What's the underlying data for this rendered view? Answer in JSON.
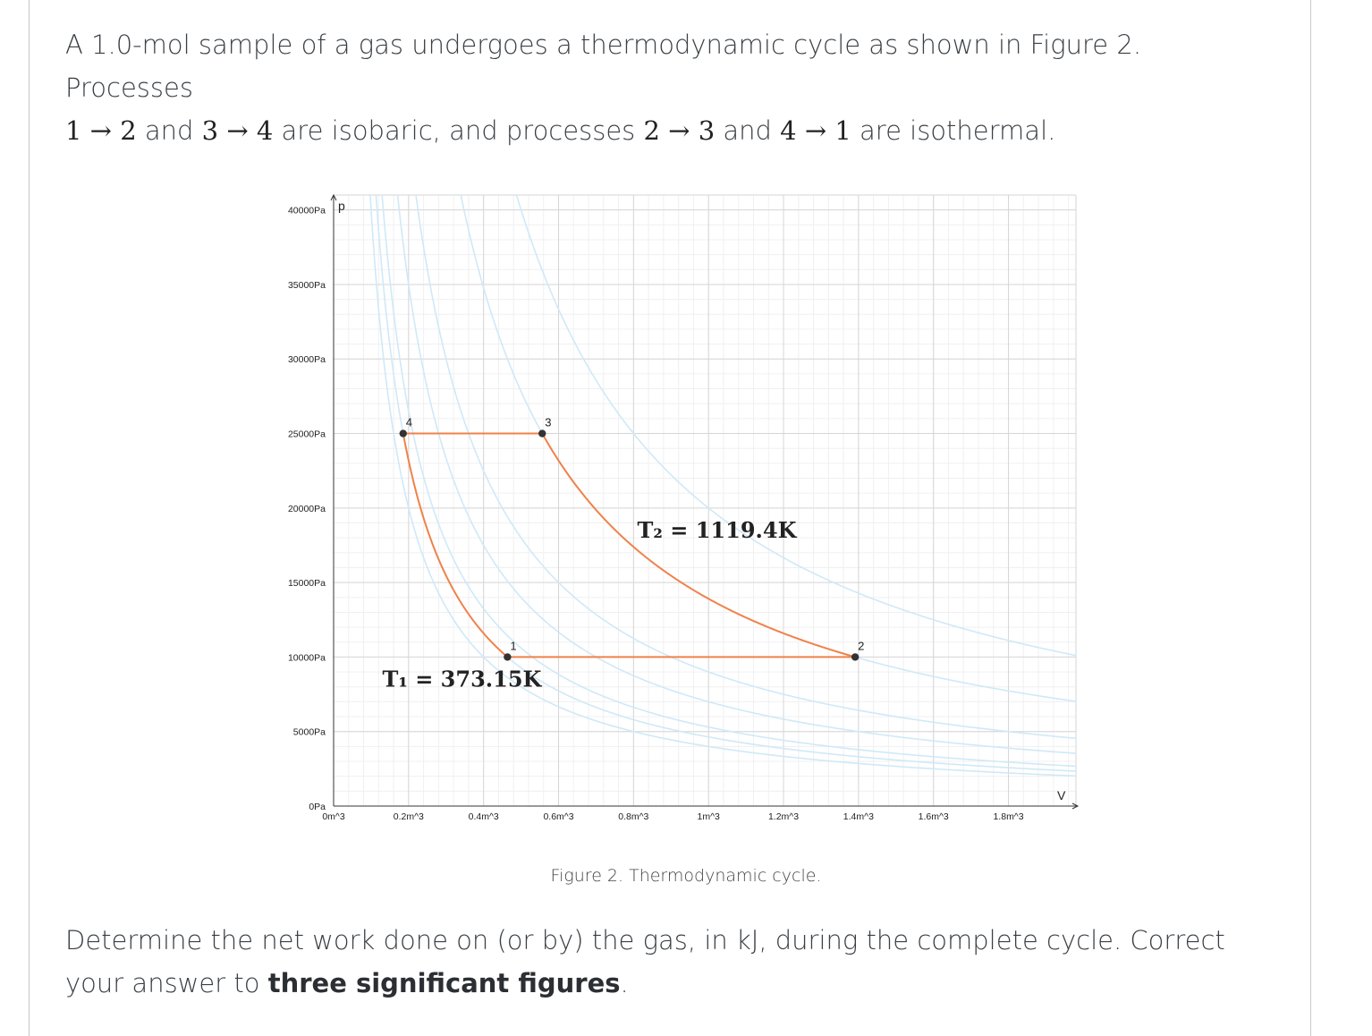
{
  "problem": {
    "intro_line1": "A 1.0-mol sample of a gas undergoes a thermodynamic cycle as shown in Figure 2. Processes",
    "seg1_a": "1",
    "seg1_b": "2",
    "and_1": "and",
    "seg2_a": "3",
    "seg2_b": "4",
    "mid_text": "are isobaric, and processes",
    "seg3_a": "2",
    "seg3_b": "3",
    "and_2": "and",
    "seg4_a": "4",
    "seg4_b": "1",
    "end_text": "are isothermal.",
    "arrow": "→",
    "question_pre": "Determine the net work done on (or by) the gas, in kJ, during the complete cycle. Correct your answer to",
    "question_bold": "three significant figures",
    "question_end": "."
  },
  "figure": {
    "caption": "Figure 2. Thermodynamic cycle."
  },
  "chart_data": {
    "type": "line",
    "xlabel": "V",
    "ylabel": "p",
    "xlim": [
      0,
      1.98
    ],
    "ylim": [
      0,
      41000
    ],
    "x_ticks": [
      {
        "v": 0,
        "label": "0m^3"
      },
      {
        "v": 0.2,
        "label": "0.2m^3"
      },
      {
        "v": 0.4,
        "label": "0.4m^3"
      },
      {
        "v": 0.6,
        "label": "0.6m^3"
      },
      {
        "v": 0.8,
        "label": "0.8m^3"
      },
      {
        "v": 1.0,
        "label": "1m^3"
      },
      {
        "v": 1.2,
        "label": "1.2m^3"
      },
      {
        "v": 1.4,
        "label": "1.4m^3"
      },
      {
        "v": 1.6,
        "label": "1.6m^3"
      },
      {
        "v": 1.8,
        "label": "1.8m^3"
      }
    ],
    "y_ticks": [
      {
        "v": 0,
        "label": "0Pa"
      },
      {
        "v": 5000,
        "label": "5000Pa"
      },
      {
        "v": 10000,
        "label": "10000Pa"
      },
      {
        "v": 15000,
        "label": "15000Pa"
      },
      {
        "v": 20000,
        "label": "20000Pa"
      },
      {
        "v": 25000,
        "label": "25000Pa"
      },
      {
        "v": 30000,
        "label": "30000Pa"
      },
      {
        "v": 35000,
        "label": "35000Pa"
      },
      {
        "v": 40000,
        "label": "40000Pa"
      }
    ],
    "grid": true,
    "points": [
      {
        "name": "1",
        "x": 0.4637,
        "y": 10000
      },
      {
        "name": "2",
        "x": 1.3911,
        "y": 10000
      },
      {
        "name": "3",
        "x": 0.5564,
        "y": 25000
      },
      {
        "name": "4",
        "x": 0.1855,
        "y": 25000
      }
    ],
    "cycle": {
      "isobaric": [
        [
          "1",
          "2"
        ],
        [
          "3",
          "4"
        ]
      ],
      "isothermal": [
        [
          "2",
          "3"
        ],
        [
          "4",
          "1"
        ]
      ],
      "color": "#f0824a"
    },
    "background_isotherms_pV": [
      4000,
      4637,
      5300,
      7000,
      9000,
      13911,
      20000
    ],
    "background_isotherm_color": "#cfe9f8",
    "annotations": [
      {
        "text": "T₁ = 373.15K",
        "x": 0.13,
        "y": 8000
      },
      {
        "text": "T₂ = 1119.4K",
        "x": 0.81,
        "y": 18000
      }
    ]
  }
}
